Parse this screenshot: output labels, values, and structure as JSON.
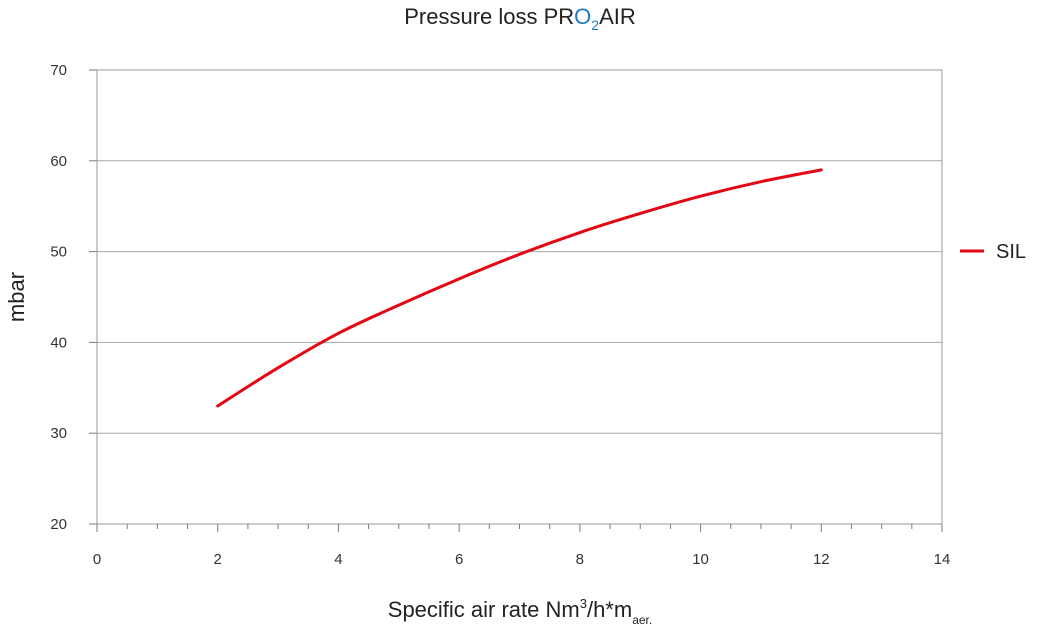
{
  "chart_data": {
    "type": "line",
    "title": {
      "prefix": "Pressure loss ",
      "brand_a": "PR",
      "brand_o": "O",
      "brand_sub": "2",
      "brand_b": "AIR"
    },
    "xlabel": {
      "main": "Specific air rate Nm",
      "sup": "3",
      "mid": "/h*m",
      "sub": "aer."
    },
    "ylabel": "mbar",
    "xlim": [
      0,
      14
    ],
    "ylim": [
      20,
      70
    ],
    "x_ticks": [
      0,
      2,
      4,
      6,
      8,
      10,
      12,
      14
    ],
    "y_ticks": [
      20,
      30,
      40,
      50,
      60,
      70
    ],
    "grid": "horizontal",
    "legend_position": "right",
    "series": [
      {
        "name": "SIL",
        "color": "#e30613",
        "x": [
          2,
          3,
          4,
          5,
          6,
          7,
          8,
          9,
          10,
          11,
          12
        ],
        "y": [
          33,
          37.2,
          41,
          44.1,
          47,
          49.7,
          52.1,
          54.2,
          56.1,
          57.7,
          59
        ]
      }
    ]
  },
  "colors": {
    "line": "#e30613",
    "brand_blue": "#1f7bc2",
    "grid": "#a8a8a8",
    "axis": "#7a7a7a"
  }
}
